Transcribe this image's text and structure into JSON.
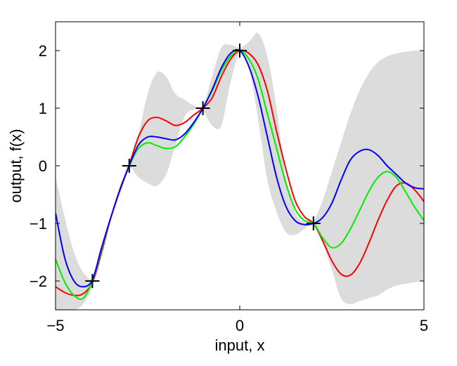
{
  "chart_data": {
    "type": "line",
    "title": "",
    "xlabel": "input, x",
    "ylabel": "output, f(x)",
    "xlim": [
      -5,
      5
    ],
    "ylim": [
      -2.5,
      2.5
    ],
    "xticks": [
      -5,
      0,
      5
    ],
    "xtick_labels": [
      "−5",
      "0",
      "5"
    ],
    "yticks": [
      -2,
      -1,
      0,
      1,
      2
    ],
    "ytick_labels": [
      "−2",
      "−1",
      "0",
      "1",
      "2"
    ],
    "grid": false,
    "legend": "none",
    "band": {
      "color": "#dcdcdc",
      "x": [
        -5,
        -4.75,
        -4.5,
        -4.25,
        -4,
        -3.75,
        -3.5,
        -3.25,
        -3,
        -2.75,
        -2.5,
        -2.25,
        -2,
        -1.75,
        -1.5,
        -1.25,
        -1,
        -0.75,
        -0.5,
        -0.25,
        0,
        0.25,
        0.5,
        0.75,
        1,
        1.25,
        1.5,
        1.75,
        2,
        2.25,
        2.5,
        2.75,
        3,
        3.25,
        3.5,
        3.75,
        4,
        4.25,
        4.5,
        4.75,
        5
      ],
      "upper": [
        -0.2,
        -0.9,
        -1.5,
        -1.85,
        -1.95,
        -1.6,
        -1.0,
        -0.5,
        0.05,
        0.55,
        1.25,
        1.62,
        1.55,
        1.25,
        1.15,
        1.05,
        1.05,
        1.55,
        2.05,
        2.1,
        2.05,
        2.15,
        2.3,
        1.9,
        1.0,
        -0.2,
        -0.8,
        -0.98,
        -0.95,
        -0.6,
        -0.1,
        0.4,
        0.9,
        1.3,
        1.6,
        1.8,
        1.9,
        1.95,
        1.98,
        2.0,
        2.0
      ],
      "lower": [
        -2.5,
        -2.5,
        -2.5,
        -2.4,
        -2.1,
        -1.6,
        -1.0,
        -0.5,
        -0.05,
        -0.2,
        -0.3,
        -0.35,
        -0.15,
        0.35,
        0.85,
        0.98,
        0.95,
        0.7,
        0.7,
        1.45,
        1.95,
        1.7,
        0.8,
        -0.25,
        -0.8,
        -1.15,
        -1.2,
        -1.1,
        -1.0,
        -1.35,
        -1.8,
        -2.3,
        -2.4,
        -2.35,
        -2.3,
        -2.25,
        -2.15,
        -2.08,
        -2.05,
        -2.02,
        -2.0
      ]
    },
    "x": [
      -5,
      -4.75,
      -4.5,
      -4.25,
      -4,
      -3.75,
      -3.5,
      -3.25,
      -3,
      -2.75,
      -2.5,
      -2.25,
      -2,
      -1.75,
      -1.5,
      -1.25,
      -1,
      -0.75,
      -0.5,
      -0.25,
      0,
      0.25,
      0.5,
      0.75,
      1,
      1.25,
      1.5,
      1.75,
      2,
      2.25,
      2.5,
      2.75,
      3,
      3.25,
      3.5,
      3.75,
      4,
      4.25,
      4.5,
      4.75,
      5
    ],
    "series": [
      {
        "color": "#ff0000",
        "values": [
          -2.1,
          -2.2,
          -2.25,
          -2.22,
          -2.02,
          -1.5,
          -0.9,
          -0.4,
          0.02,
          0.5,
          0.78,
          0.84,
          0.78,
          0.7,
          0.75,
          0.88,
          1.0,
          1.18,
          1.55,
          1.85,
          2.0,
          1.95,
          1.75,
          1.3,
          0.6,
          -0.05,
          -0.6,
          -0.88,
          -1.0,
          -1.3,
          -1.65,
          -1.88,
          -1.9,
          -1.7,
          -1.35,
          -0.95,
          -0.6,
          -0.35,
          -0.3,
          -0.42,
          -0.62
        ]
      },
      {
        "color": "#00ee00",
        "values": [
          -1.62,
          -2.02,
          -2.25,
          -2.3,
          -2.0,
          -1.45,
          -0.9,
          -0.42,
          0.0,
          0.3,
          0.4,
          0.35,
          0.3,
          0.33,
          0.5,
          0.72,
          1.0,
          1.3,
          1.65,
          1.9,
          2.0,
          1.85,
          1.5,
          0.9,
          0.3,
          -0.3,
          -0.75,
          -0.95,
          -1.0,
          -1.25,
          -1.42,
          -1.35,
          -1.1,
          -0.78,
          -0.45,
          -0.2,
          -0.1,
          -0.2,
          -0.45,
          -0.72,
          -0.95
        ]
      },
      {
        "color": "#0000ff",
        "values": [
          -0.82,
          -1.6,
          -2.0,
          -2.1,
          -1.98,
          -1.42,
          -0.9,
          -0.42,
          0.0,
          0.36,
          0.5,
          0.5,
          0.47,
          0.45,
          0.55,
          0.75,
          1.0,
          1.32,
          1.7,
          1.95,
          2.0,
          1.72,
          1.2,
          0.5,
          -0.2,
          -0.7,
          -0.95,
          -1.02,
          -1.0,
          -0.9,
          -0.65,
          -0.25,
          0.1,
          0.25,
          0.28,
          0.18,
          0.0,
          -0.15,
          -0.3,
          -0.38,
          -0.4
        ]
      }
    ],
    "points": {
      "marker": "+",
      "color": "#000000",
      "x": [
        -4,
        -3,
        -1,
        0,
        2
      ],
      "y": [
        -2,
        0,
        1,
        2,
        -1
      ]
    }
  }
}
